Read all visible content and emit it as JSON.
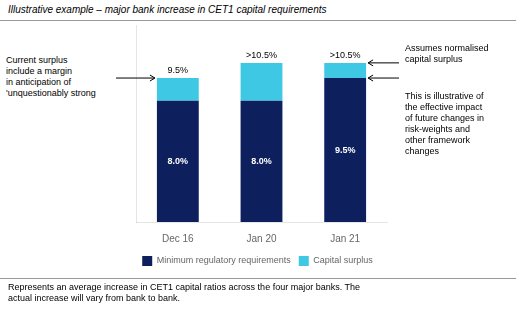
{
  "chart_data": {
    "type": "bar",
    "title": "Illustrative example – major bank increase in CET1 capital requirements",
    "categories": [
      "Dec 16",
      "Jan 20",
      "Jan 21"
    ],
    "series": [
      {
        "name": "Minimum regulatory requirements",
        "color": "#0d1f5c",
        "values": [
          8.0,
          8.0,
          9.5
        ],
        "value_labels": [
          "8.0%",
          "8.0%",
          "9.5%"
        ]
      },
      {
        "name": "Capital surplus",
        "color": "#3fc8e4",
        "values": [
          1.5,
          2.5,
          1.0
        ]
      }
    ],
    "totals": [
      9.5,
      10.5,
      10.5
    ],
    "total_labels": [
      "9.5%",
      ">10.5%",
      ">10.5%"
    ],
    "stacked": true,
    "data_labels": true,
    "ylim": [
      0,
      13
    ],
    "tick_labels": "x",
    "grid": false,
    "legend": "bottom",
    "annotations": [
      "Current surplus\ninclude a margin\nin anticipation of\n'unquestionably strong",
      "Assumes normalised\ncapital surplus",
      "This is illustrative of\nthe effective impact\nof future changes in\nrisk-weights and\nother framework\nchanges"
    ],
    "footnote": "Represents an average increase in CET1 capital ratios across the four major banks. The\nactual increase will vary from bank to bank."
  }
}
